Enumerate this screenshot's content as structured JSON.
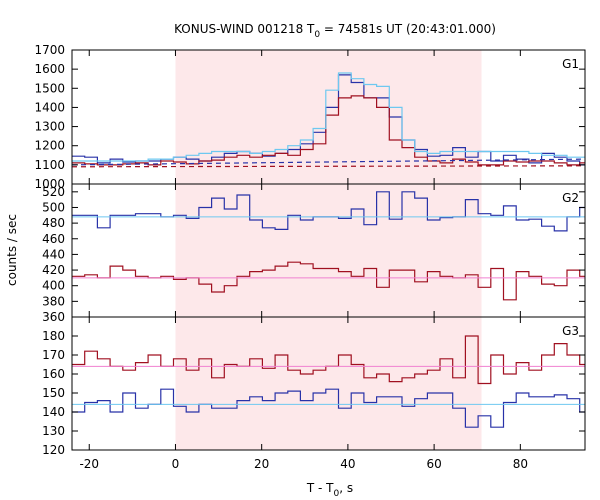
{
  "chart_data": {
    "type": "line",
    "title": "KONUS-WIND 001218 T₀ = 74581s UT (20:43:01.000)",
    "title_parts": {
      "prefix": "KONUS-WIND 001218 T",
      "sub": "0",
      "suffix": " = 74581s UT (20:43:01.000)"
    },
    "xlabel": "T - T₀, s",
    "xlabel_parts": {
      "prefix": "T - T",
      "sub": "0",
      "suffix": ", s"
    },
    "ylabel": "counts / sec",
    "xlim": [
      -24,
      95
    ],
    "x_ticks": [
      -20,
      0,
      20,
      40,
      60,
      80
    ],
    "shaded_interval": [
      0,
      71
    ],
    "colors": {
      "shade": "#fde8ea",
      "blue": "#2832a8",
      "red": "#a01020",
      "light_blue": "#6ec8f0",
      "pink": "#f080d0"
    },
    "bin_width": 2.944,
    "panels": [
      {
        "label": "G1",
        "ylim": [
          1000,
          1700
        ],
        "y_ticks": [
          1000,
          1100,
          1200,
          1300,
          1400,
          1500,
          1600,
          1700
        ],
        "x_start": -24,
        "series": [
          {
            "color": "blue",
            "style": "step",
            "values": [
              1145,
              1140,
              1110,
              1130,
              1115,
              1120,
              1120,
              1130,
              1140,
              1130,
              1120,
              1140,
              1160,
              1170,
              1160,
              1145,
              1160,
              1180,
              1210,
              1270,
              1400,
              1570,
              1530,
              1450,
              1450,
              1350,
              1230,
              1180,
              1145,
              1150,
              1190,
              1140,
              1170,
              1120,
              1150,
              1130,
              1110,
              1160,
              1140,
              1120,
              1100,
              1150,
              1160,
              1150,
              1160,
              1145,
              1150,
              1140,
              1140,
              1130
            ]
          },
          {
            "color": "red",
            "style": "step",
            "values": [
              1110,
              1105,
              1100,
              1100,
              1105,
              1110,
              1100,
              1120,
              1115,
              1105,
              1120,
              1125,
              1140,
              1150,
              1140,
              1150,
              1160,
              1150,
              1180,
              1210,
              1360,
              1450,
              1460,
              1450,
              1400,
              1230,
              1190,
              1140,
              1120,
              1110,
              1130,
              1115,
              1100,
              1100,
              1120,
              1115,
              1120,
              1120,
              1110,
              1100,
              1110,
              1110,
              1100,
              1105,
              1110,
              1110,
              1100,
              1100,
              1090,
              1100
            ]
          },
          {
            "color": "light_blue",
            "style": "step",
            "values": [
              1120,
              1120,
              1120,
              1120,
              1120,
              1120,
              1130,
              1130,
              1140,
              1150,
              1160,
              1170,
              1170,
              1170,
              1160,
              1170,
              1180,
              1200,
              1230,
              1290,
              1490,
              1580,
              1550,
              1520,
              1510,
              1400,
              1230,
              1170,
              1160,
              1170,
              1170,
              1170,
              1170,
              1170,
              1170,
              1170,
              1160,
              1150,
              1150,
              1140,
              1140,
              1140,
              1140,
              1140,
              1140,
              1140,
              1140,
              1140,
              1140,
              1140
            ]
          },
          {
            "color": "blue",
            "style": "dash",
            "points": [
              [
                -24,
                1100
              ],
              [
                95,
                1130
              ]
            ]
          },
          {
            "color": "red",
            "style": "dash",
            "points": [
              [
                -24,
                1090
              ],
              [
                95,
                1095
              ]
            ]
          }
        ]
      },
      {
        "label": "G2",
        "ylim": [
          360,
          530
        ],
        "y_ticks": [
          360,
          380,
          400,
          420,
          440,
          460,
          480,
          500,
          520
        ],
        "x_start": -24,
        "series": [
          {
            "color": "blue",
            "style": "step",
            "values": [
              490,
              490,
              474,
              490,
              490,
              492,
              492,
              488,
              490,
              486,
              500,
              512,
              498,
              516,
              484,
              474,
              472,
              490,
              484,
              488,
              488,
              486,
              498,
              478,
              520,
              485,
              520,
              512,
              484,
              487,
              488,
              510,
              492,
              490,
              502,
              484,
              485,
              476,
              470,
              488,
              500,
              480,
              490,
              488,
              470,
              496,
              498,
              487,
              475,
              488
            ]
          },
          {
            "color": "red",
            "style": "step",
            "values": [
              412,
              414,
              410,
              425,
              420,
              412,
              410,
              412,
              408,
              410,
              402,
              392,
              400,
              412,
              418,
              420,
              425,
              430,
              428,
              422,
              422,
              418,
              412,
              422,
              398,
              420,
              420,
              405,
              418,
              412,
              410,
              414,
              398,
              422,
              382,
              418,
              412,
              402,
              400,
              420,
              412,
              412,
              400,
              405,
              408,
              412,
              418,
              420,
              414,
              415
            ]
          },
          {
            "color": "light_blue",
            "style": "hline",
            "value": 488
          },
          {
            "color": "pink",
            "style": "hline",
            "value": 410
          }
        ]
      },
      {
        "label": "G3",
        "ylim": [
          120,
          190
        ],
        "y_ticks": [
          120,
          130,
          140,
          150,
          160,
          170,
          180
        ],
        "x_start": -24,
        "series": [
          {
            "color": "blue",
            "style": "step",
            "values": [
              140,
              145,
              146,
              140,
              150,
              142,
              144,
              152,
              143,
              140,
              144,
              142,
              142,
              146,
              148,
              146,
              150,
              151,
              146,
              150,
              152,
              142,
              150,
              145,
              148,
              148,
              143,
              147,
              150,
              150,
              142,
              132,
              138,
              132,
              145,
              150,
              148,
              148,
              149,
              147,
              140,
              145,
              140,
              140,
              142,
              145,
              148,
              150,
              145,
              148
            ]
          },
          {
            "color": "red",
            "style": "step",
            "values": [
              165,
              172,
              168,
              164,
              162,
              166,
              170,
              164,
              168,
              162,
              168,
              158,
              165,
              164,
              168,
              163,
              170,
              162,
              160,
              162,
              164,
              170,
              165,
              158,
              160,
              156,
              158,
              160,
              162,
              168,
              158,
              180,
              155,
              170,
              160,
              166,
              162,
              170,
              176,
              170,
              165,
              162,
              165,
              165,
              164,
              166,
              167,
              170,
              168,
              170
            ]
          },
          {
            "color": "light_blue",
            "style": "hline",
            "value": 144
          },
          {
            "color": "pink",
            "style": "hline",
            "value": 164
          }
        ]
      }
    ]
  }
}
